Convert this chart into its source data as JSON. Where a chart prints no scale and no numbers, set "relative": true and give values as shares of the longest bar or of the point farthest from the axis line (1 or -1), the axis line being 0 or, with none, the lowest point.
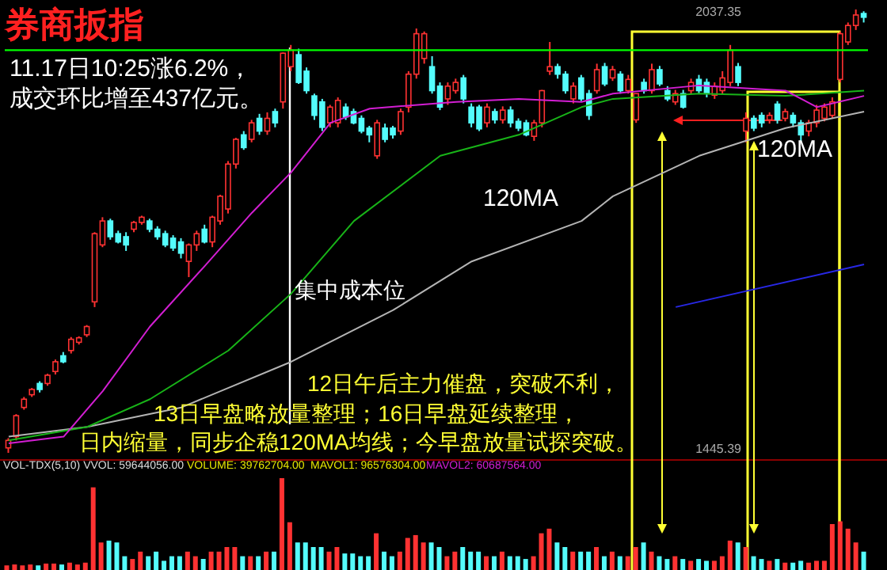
{
  "chart_data": [
    {
      "type": "candlestick",
      "title": "券商扳指",
      "categories": [
        null,
        null,
        null,
        null,
        null,
        null,
        null,
        null,
        null,
        null,
        null,
        null,
        null,
        null,
        null,
        null,
        null,
        null,
        null,
        null,
        null,
        null,
        null,
        null,
        null,
        null,
        null,
        null,
        null,
        null,
        null,
        null,
        null,
        null,
        null,
        null,
        null,
        null,
        null,
        null,
        null,
        null,
        null,
        null,
        null,
        null,
        null,
        null,
        null,
        null,
        null,
        null,
        null,
        null,
        null,
        null,
        null,
        null,
        null,
        null,
        null,
        null,
        null,
        null,
        null,
        null,
        null,
        null,
        null,
        null,
        null,
        null,
        null,
        null,
        null,
        null,
        null,
        null,
        null,
        null,
        null,
        null,
        null,
        null,
        null,
        null,
        null,
        null,
        null,
        null,
        null,
        null,
        null,
        null,
        null,
        null,
        null,
        null,
        null,
        null,
        null,
        null,
        null,
        null,
        null,
        null,
        null,
        null,
        null,
        null
      ],
      "ohlc": [
        [
          1452,
          1465,
          1445.39,
          1462
        ],
        [
          1467,
          1497,
          1462,
          1495
        ],
        [
          1506,
          1520,
          1503,
          1517
        ],
        [
          1523,
          1532,
          1520,
          1530
        ],
        [
          1538,
          1541,
          1526,
          1530
        ],
        [
          1538,
          1551,
          1535,
          1549
        ],
        [
          1554,
          1570,
          1550,
          1567
        ],
        [
          1575,
          1580,
          1565,
          1567
        ],
        [
          1582,
          1600,
          1578,
          1597
        ],
        [
          1593,
          1601,
          1590,
          1599
        ],
        [
          1603,
          1616,
          1600,
          1614
        ],
        [
          1647,
          1740,
          1640,
          1738
        ],
        [
          1723,
          1760,
          1720,
          1755
        ],
        [
          1755,
          1758,
          1730,
          1734
        ],
        [
          1738,
          1742,
          1725,
          1727
        ],
        [
          1734,
          1740,
          1715,
          1723
        ],
        [
          1744,
          1755,
          1740,
          1753
        ],
        [
          1753,
          1762,
          1750,
          1760
        ],
        [
          1755,
          1758,
          1740,
          1744
        ],
        [
          1744,
          1748,
          1730,
          1734
        ],
        [
          1738,
          1742,
          1720,
          1723
        ],
        [
          1732,
          1736,
          1715,
          1719
        ],
        [
          1727,
          1732,
          1705,
          1712
        ],
        [
          1701,
          1725,
          1680,
          1723
        ],
        [
          1723,
          1742,
          1715,
          1738
        ],
        [
          1744,
          1750,
          1725,
          1727
        ],
        [
          1727,
          1762,
          1720,
          1760
        ],
        [
          1755,
          1790,
          1750,
          1788
        ],
        [
          1771,
          1835,
          1765,
          1831
        ],
        [
          1831,
          1866,
          1825,
          1864
        ],
        [
          1870,
          1875,
          1850,
          1853
        ],
        [
          1864,
          1890,
          1860,
          1886
        ],
        [
          1892,
          1898,
          1870,
          1875
        ],
        [
          1875,
          1900,
          1870,
          1892
        ],
        [
          1901,
          1905,
          1880,
          1886
        ],
        [
          1914,
          1980,
          1905,
          1979
        ],
        [
          1961,
          1990,
          1955,
          1983
        ],
        [
          1977,
          1985,
          1938,
          1940
        ],
        [
          1955,
          1960,
          1925,
          1929
        ],
        [
          1922,
          1925,
          1890,
          1896
        ],
        [
          1914,
          1918,
          1875,
          1880
        ],
        [
          1886,
          1910,
          1880,
          1907
        ],
        [
          1886,
          1920,
          1880,
          1916
        ],
        [
          1907,
          1912,
          1890,
          1894
        ],
        [
          1901,
          1905,
          1884,
          1886
        ],
        [
          1892,
          1896,
          1872,
          1875
        ],
        [
          1879,
          1882,
          1860,
          1870
        ],
        [
          1842,
          1890,
          1838,
          1886
        ],
        [
          1879,
          1885,
          1860,
          1864
        ],
        [
          1879,
          1882,
          1865,
          1870
        ],
        [
          1875,
          1905,
          1870,
          1901
        ],
        [
          1907,
          1955,
          1900,
          1951
        ],
        [
          1951,
          2012,
          1945,
          2005
        ],
        [
          1972,
          2008,
          1965,
          2005
        ],
        [
          1961,
          1975,
          1925,
          1929
        ],
        [
          1935,
          1940,
          1903,
          1907
        ],
        [
          1918,
          1940,
          1910,
          1935
        ],
        [
          1929,
          1945,
          1925,
          1940
        ],
        [
          1946,
          1950,
          1912,
          1918
        ],
        [
          1907,
          1912,
          1880,
          1886
        ],
        [
          1907,
          1910,
          1875,
          1878
        ],
        [
          1886,
          1912,
          1880,
          1907
        ],
        [
          1901,
          1905,
          1885,
          1890
        ],
        [
          1890,
          1908,
          1885,
          1903
        ],
        [
          1903,
          1908,
          1880,
          1886
        ],
        [
          1888,
          1892,
          1875,
          1879
        ],
        [
          1886,
          1890,
          1868,
          1870
        ],
        [
          1868,
          1890,
          1862,
          1886
        ],
        [
          1886,
          1930,
          1880,
          1929
        ],
        [
          1955,
          1994,
          1950,
          1961
        ],
        [
          1961,
          1965,
          1945,
          1951
        ],
        [
          1951,
          1955,
          1925,
          1929
        ],
        [
          1918,
          1940,
          1912,
          1935
        ],
        [
          1946,
          1950,
          1915,
          1918
        ],
        [
          1925,
          1930,
          1890,
          1896
        ],
        [
          1929,
          1965,
          1925,
          1957
        ],
        [
          1961,
          1966,
          1935,
          1938
        ],
        [
          1946,
          1962,
          1942,
          1957
        ],
        [
          1951,
          1955,
          1925,
          1929
        ],
        [
          1929,
          1950,
          1925,
          1944
        ],
        [
          1890,
          1925,
          1886,
          1925
        ],
        [
          1940,
          1945,
          1925,
          1929
        ],
        [
          1929,
          1965,
          1925,
          1957
        ],
        [
          1957,
          1962,
          1935,
          1938
        ],
        [
          1929,
          1935,
          1915,
          1918
        ],
        [
          1914,
          1930,
          1910,
          1925
        ],
        [
          1925,
          1930,
          1905,
          1907
        ],
        [
          1929,
          1945,
          1925,
          1940
        ],
        [
          1944,
          1950,
          1925,
          1929
        ],
        [
          1940,
          1945,
          1920,
          1925
        ],
        [
          1923,
          1940,
          1918,
          1935
        ],
        [
          1929,
          1955,
          1925,
          1946
        ],
        [
          1940,
          1990,
          1935,
          1983
        ],
        [
          1961,
          1966,
          1935,
          1940
        ],
        [
          1875,
          1900,
          1860,
          1892
        ],
        [
          1892,
          1896,
          1875,
          1879
        ],
        [
          1896,
          1900,
          1880,
          1886
        ],
        [
          1890,
          1900,
          1885,
          1896
        ],
        [
          1911,
          1915,
          1885,
          1890
        ],
        [
          1892,
          1905,
          1888,
          1901
        ],
        [
          1896,
          1900,
          1880,
          1886
        ],
        [
          1886,
          1890,
          1860,
          1870
        ],
        [
          1875,
          1890,
          1868,
          1886
        ],
        [
          1886,
          1910,
          1880,
          1903
        ],
        [
          1892,
          1912,
          1888,
          1907
        ],
        [
          1896,
          1920,
          1892,
          1914
        ],
        [
          1944,
          2008,
          1940,
          2005
        ],
        [
          1994,
          2020,
          1990,
          2016
        ],
        [
          2016,
          2037.35,
          2010,
          2030
        ],
        [
          2032,
          2035,
          2020,
          2027
        ]
      ],
      "colors": [
        "#ff3232",
        "#ff3232",
        "#ff3232",
        "#ff3232",
        "#54fcfc",
        "#ff3232",
        "#ff3232",
        "#54fcfc",
        "#ff3232",
        "#ff3232",
        "#ff3232",
        "#ff3232",
        "#ff3232",
        "#54fcfc",
        "#54fcfc",
        "#54fcfc",
        "#ff3232",
        "#ff3232",
        "#54fcfc",
        "#54fcfc",
        "#54fcfc",
        "#54fcfc",
        "#54fcfc",
        "#ff3232",
        "#ff3232",
        "#54fcfc",
        "#ff3232",
        "#ff3232",
        "#ff3232",
        "#ff3232",
        "#54fcfc",
        "#ff3232",
        "#54fcfc",
        "#ff3232",
        "#54fcfc",
        "#ff3232",
        "#ff3232",
        "#54fcfc",
        "#54fcfc",
        "#54fcfc",
        "#54fcfc",
        "#ff3232",
        "#ff3232",
        "#54fcfc",
        "#54fcfc",
        "#54fcfc",
        "#54fcfc",
        "#ff3232",
        "#54fcfc",
        "#54fcfc",
        "#ff3232",
        "#ff3232",
        "#ff3232",
        "#ff3232",
        "#54fcfc",
        "#54fcfc",
        "#ff3232",
        "#ff3232",
        "#54fcfc",
        "#54fcfc",
        "#54fcfc",
        "#ff3232",
        "#54fcfc",
        "#ff3232",
        "#54fcfc",
        "#54fcfc",
        "#54fcfc",
        "#ff3232",
        "#ff3232",
        "#ff3232",
        "#54fcfc",
        "#54fcfc",
        "#ff3232",
        "#54fcfc",
        "#54fcfc",
        "#ff3232",
        "#54fcfc",
        "#ff3232",
        "#54fcfc",
        "#ff3232",
        "#ff3232",
        "#54fcfc",
        "#ff3232",
        "#54fcfc",
        "#54fcfc",
        "#ff3232",
        "#54fcfc",
        "#ff3232",
        "#54fcfc",
        "#54fcfc",
        "#ff3232",
        "#ff3232",
        "#ff3232",
        "#54fcfc",
        "#ff3232",
        "#54fcfc",
        "#54fcfc",
        "#ff3232",
        "#54fcfc",
        "#ff3232",
        "#54fcfc",
        "#54fcfc",
        "#ff3232",
        "#ff3232",
        "#ff3232",
        "#ff3232",
        "#ff3232",
        "#ff3232",
        "#ff3232",
        "#54fcfc"
      ],
      "series": [
        {
          "type": "line",
          "color": "#b4b4b4",
          "values": [
            1467,
            null,
            null,
            null,
            null,
            null,
            null,
            null,
            null,
            null,
            1480,
            null,
            null,
            null,
            null,
            null,
            null,
            null,
            null,
            null,
            null,
            null,
            1506,
            null,
            null,
            null,
            null,
            null,
            null,
            null,
            null,
            null,
            null,
            null,
            null,
            null,
            1567,
            null,
            null,
            null,
            null,
            null,
            null,
            null,
            null,
            null,
            null,
            null,
            null,
            1636,
            null,
            null,
            null,
            null,
            null,
            null,
            null,
            null,
            null,
            1701,
            null,
            null,
            null,
            null,
            null,
            null,
            null,
            null,
            null,
            null,
            null,
            null,
            null,
            1755,
            null,
            null,
            null,
            1788,
            null,
            null,
            null,
            null,
            null,
            null,
            null,
            null,
            null,
            null,
            1842,
            null,
            null,
            null,
            null,
            null,
            null,
            null,
            null,
            null,
            null,
            1879,
            null,
            null,
            null,
            null,
            null,
            null,
            null,
            null,
            null,
            1901
          ]
        },
        {
          "type": "line",
          "color": "#18b418",
          "values": [
            1462,
            null,
            null,
            null,
            null,
            null,
            null,
            null,
            null,
            null,
            1480,
            null,
            null,
            null,
            null,
            null,
            null,
            null,
            1517,
            null,
            null,
            null,
            null,
            null,
            null,
            null,
            null,
            null,
            1582,
            null,
            null,
            null,
            null,
            null,
            null,
            null,
            1658,
            null,
            null,
            null,
            null,
            null,
            null,
            null,
            1755,
            null,
            null,
            null,
            null,
            null,
            null,
            null,
            null,
            null,
            null,
            1842,
            null,
            null,
            null,
            null,
            null,
            null,
            null,
            null,
            null,
            1870,
            null,
            null,
            null,
            null,
            null,
            null,
            null,
            1907,
            null,
            null,
            null,
            1918,
            null,
            null,
            null,
            null,
            null,
            null,
            null,
            null,
            null,
            null,
            1925,
            null,
            null,
            null,
            null,
            null,
            null,
            null,
            null,
            null,
            null,
            1922,
            null,
            null,
            null,
            null,
            null,
            null,
            null,
            null,
            null,
            1929
          ]
        },
        {
          "type": "line",
          "color": "#d21ed2",
          "values": [
            1458,
            null,
            null,
            null,
            null,
            null,
            null,
            1467,
            null,
            null,
            null,
            null,
            1528,
            null,
            null,
            null,
            null,
            null,
            1614,
            null,
            null,
            null,
            null,
            null,
            null,
            1695,
            null,
            null,
            null,
            null,
            null,
            1766,
            null,
            null,
            null,
            null,
            1820,
            null,
            null,
            null,
            null,
            1886,
            null,
            null,
            null,
            null,
            1905,
            null,
            null,
            null,
            null,
            null,
            null,
            null,
            null,
            null,
            null,
            1914,
            null,
            null,
            null,
            null,
            null,
            null,
            null,
            1918,
            null,
            null,
            null,
            null,
            null,
            null,
            null,
            1914,
            null,
            null,
            null,
            1925,
            null,
            null,
            null,
            null,
            null,
            null,
            null,
            null,
            null,
            null,
            1936,
            null,
            null,
            null,
            null,
            null,
            null,
            null,
            null,
            null,
            null,
            1929,
            null,
            null,
            null,
            1907,
            null,
            null,
            null,
            null,
            null,
            1922
          ]
        },
        {
          "type": "line",
          "color": "#2828e6",
          "values": [
            null,
            null,
            null,
            null,
            null,
            null,
            null,
            null,
            null,
            null,
            null,
            null,
            null,
            null,
            null,
            null,
            null,
            null,
            null,
            null,
            null,
            null,
            null,
            null,
            null,
            null,
            null,
            null,
            null,
            null,
            null,
            null,
            null,
            null,
            null,
            null,
            null,
            null,
            null,
            null,
            null,
            null,
            null,
            null,
            null,
            null,
            null,
            null,
            null,
            null,
            null,
            null,
            null,
            null,
            null,
            null,
            null,
            null,
            null,
            null,
            null,
            null,
            null,
            null,
            null,
            null,
            null,
            null,
            null,
            null,
            null,
            null,
            null,
            null,
            null,
            null,
            null,
            null,
            null,
            null,
            null,
            null,
            null,
            null,
            null,
            1640,
            null,
            null,
            null,
            null,
            null,
            null,
            null,
            null,
            null,
            null,
            null,
            null,
            null,
            null,
            null,
            null,
            null,
            null,
            null,
            null,
            null,
            null,
            null,
            1697
          ]
        }
      ],
      "ref_lines": [
        {
          "axis": "y",
          "value": 1983,
          "color": "#00ff00"
        }
      ],
      "ylim": [
        1445.39,
        2037.35
      ],
      "yticks": [
        {
          "value": 1445.39,
          "label": "1445.39"
        },
        {
          "value": 2037.35,
          "label": "2037.35"
        }
      ],
      "annotations": [
        "11.17日10:25涨6.2%，",
        "成交环比增至437亿元。",
        "120MA",
        "120MA",
        "集中成本位",
        "12日午后主力催盘，突破不利，",
        "13日早盘略放量整理；16日早盘延续整理，",
        "日内缩量，同步企稳120MA均线；今早盘放量试探突破。"
      ]
    },
    {
      "type": "bar",
      "relative": true,
      "categories": [
        null,
        null,
        null,
        null,
        null,
        null,
        null,
        null,
        null,
        null,
        null,
        null,
        null,
        null,
        null,
        null,
        null,
        null,
        null,
        null,
        null,
        null,
        null,
        null,
        null,
        null,
        null,
        null,
        null,
        null,
        null,
        null,
        null,
        null,
        null,
        null,
        null,
        null,
        null,
        null,
        null,
        null,
        null,
        null,
        null,
        null,
        null,
        null,
        null,
        null,
        null,
        null,
        null,
        null,
        null,
        null,
        null,
        null,
        null,
        null,
        null,
        null,
        null,
        null,
        null,
        null,
        null,
        null,
        null,
        null,
        null,
        null,
        null,
        null,
        null,
        null,
        null,
        null,
        null,
        null,
        null,
        null,
        null,
        null,
        null,
        null,
        null,
        null,
        null,
        null,
        null,
        null,
        null,
        null,
        null,
        null,
        null,
        null,
        null,
        null,
        null,
        null,
        null,
        null,
        null,
        null,
        null,
        null,
        null,
        null
      ],
      "values": [
        0.05,
        0.06,
        0.05,
        0.06,
        0.05,
        0.07,
        0.07,
        0.06,
        0.08,
        0.06,
        0.08,
        0.9,
        0.3,
        0.32,
        0.3,
        0.15,
        0.12,
        0.2,
        0.15,
        0.2,
        0.1,
        0.15,
        0.15,
        0.2,
        0.15,
        0.12,
        0.2,
        0.2,
        0.25,
        0.25,
        0.15,
        0.15,
        0.15,
        0.2,
        0.2,
        1,
        0.52,
        0.3,
        0.3,
        0.25,
        0.25,
        0.2,
        0.25,
        0.18,
        0.18,
        0.15,
        0.15,
        0.4,
        0.2,
        0.15,
        0.2,
        0.35,
        0.38,
        0.3,
        0.3,
        0.25,
        0.15,
        0.2,
        0.25,
        0.2,
        0.2,
        0.15,
        0.15,
        0.2,
        0.15,
        0.15,
        0.12,
        0.15,
        0.4,
        0.45,
        0.3,
        0.25,
        0.2,
        0.2,
        0.2,
        0.25,
        0.15,
        0.2,
        0.15,
        0.15,
        0.25,
        0.3,
        0.2,
        0.15,
        0.12,
        0.15,
        0.12,
        0.1,
        0.12,
        0.1,
        0.1,
        0.15,
        0.32,
        0.3,
        0.25,
        0.15,
        0.12,
        0.1,
        0.12,
        0.08,
        0.08,
        0.1,
        0.08,
        0.1,
        0.1,
        0.5,
        0.53,
        0.45,
        0.3,
        0.2
      ],
      "colors": [
        "#ff3232",
        "#ff3232",
        "#ff3232",
        "#ff3232",
        "#54fcfc",
        "#ff3232",
        "#ff3232",
        "#54fcfc",
        "#ff3232",
        "#ff3232",
        "#ff3232",
        "#ff3232",
        "#ff3232",
        "#54fcfc",
        "#54fcfc",
        "#54fcfc",
        "#ff3232",
        "#ff3232",
        "#54fcfc",
        "#54fcfc",
        "#54fcfc",
        "#54fcfc",
        "#54fcfc",
        "#ff3232",
        "#ff3232",
        "#54fcfc",
        "#ff3232",
        "#ff3232",
        "#ff3232",
        "#ff3232",
        "#54fcfc",
        "#ff3232",
        "#54fcfc",
        "#ff3232",
        "#54fcfc",
        "#ff3232",
        "#ff3232",
        "#54fcfc",
        "#54fcfc",
        "#54fcfc",
        "#54fcfc",
        "#ff3232",
        "#ff3232",
        "#54fcfc",
        "#54fcfc",
        "#54fcfc",
        "#54fcfc",
        "#ff3232",
        "#54fcfc",
        "#54fcfc",
        "#ff3232",
        "#ff3232",
        "#ff3232",
        "#ff3232",
        "#54fcfc",
        "#54fcfc",
        "#ff3232",
        "#ff3232",
        "#54fcfc",
        "#54fcfc",
        "#54fcfc",
        "#ff3232",
        "#54fcfc",
        "#ff3232",
        "#54fcfc",
        "#54fcfc",
        "#54fcfc",
        "#ff3232",
        "#ff3232",
        "#ff3232",
        "#54fcfc",
        "#54fcfc",
        "#ff3232",
        "#54fcfc",
        "#54fcfc",
        "#ff3232",
        "#54fcfc",
        "#ff3232",
        "#54fcfc",
        "#ff3232",
        "#ff3232",
        "#54fcfc",
        "#ff3232",
        "#54fcfc",
        "#54fcfc",
        "#ff3232",
        "#54fcfc",
        "#ff3232",
        "#54fcfc",
        "#54fcfc",
        "#ff3232",
        "#ff3232",
        "#ff3232",
        "#54fcfc",
        "#ff3232",
        "#54fcfc",
        "#54fcfc",
        "#ff3232",
        "#54fcfc",
        "#ff3232",
        "#54fcfc",
        "#54fcfc",
        "#ff3232",
        "#ff3232",
        "#ff3232",
        "#ff3232",
        "#ff3232",
        "#ff3232",
        "#ff3232",
        "#54fcfc"
      ],
      "annotations": [
        "VOL-TDX(5,10)  VVOL: 59644056.00",
        "VOLUME: 39762704.00",
        "MAVOL1: 96576304.00",
        "MAVOL2: 60687564.00"
      ]
    }
  ]
}
